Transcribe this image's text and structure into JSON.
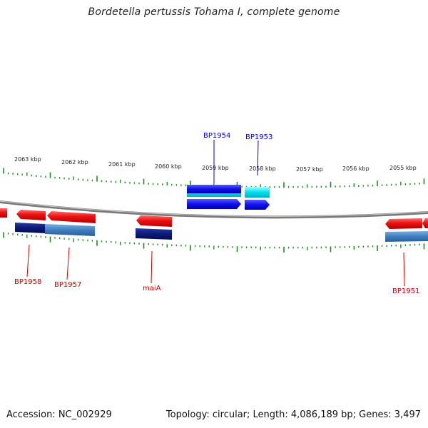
{
  "title": "Bordetella pertussis Tohama I, complete genome",
  "footer": {
    "accession": "Accession: NC_002929",
    "summary": "Topology: circular; Length: 4,086,189 bp; Genes: 3,497"
  },
  "scale_labels": [
    "2063 kbp",
    "2062 kbp",
    "2061 kbp",
    "2060 kbp",
    "2059 kbp",
    "2058 kbp",
    "2057 kbp",
    "2056 kbp",
    "2055 kbp"
  ],
  "gene_labels": {
    "forward": [
      "BP1954",
      "BP1953"
    ],
    "reverse": [
      "BP1958",
      "BP1957",
      "maiA",
      "BP1951"
    ]
  },
  "colors": {
    "forward_label": "#0000cc",
    "reverse_label": "#cc0000",
    "tick": "#1e8c1e",
    "backbone": "#7a7a7a",
    "red_feature": "#ee1111",
    "navy_feature": "#0a1a78",
    "steel_feature": "#3f7fbf",
    "blue_feature": "#1010f0",
    "cyan_feature": "#00e0ee"
  }
}
